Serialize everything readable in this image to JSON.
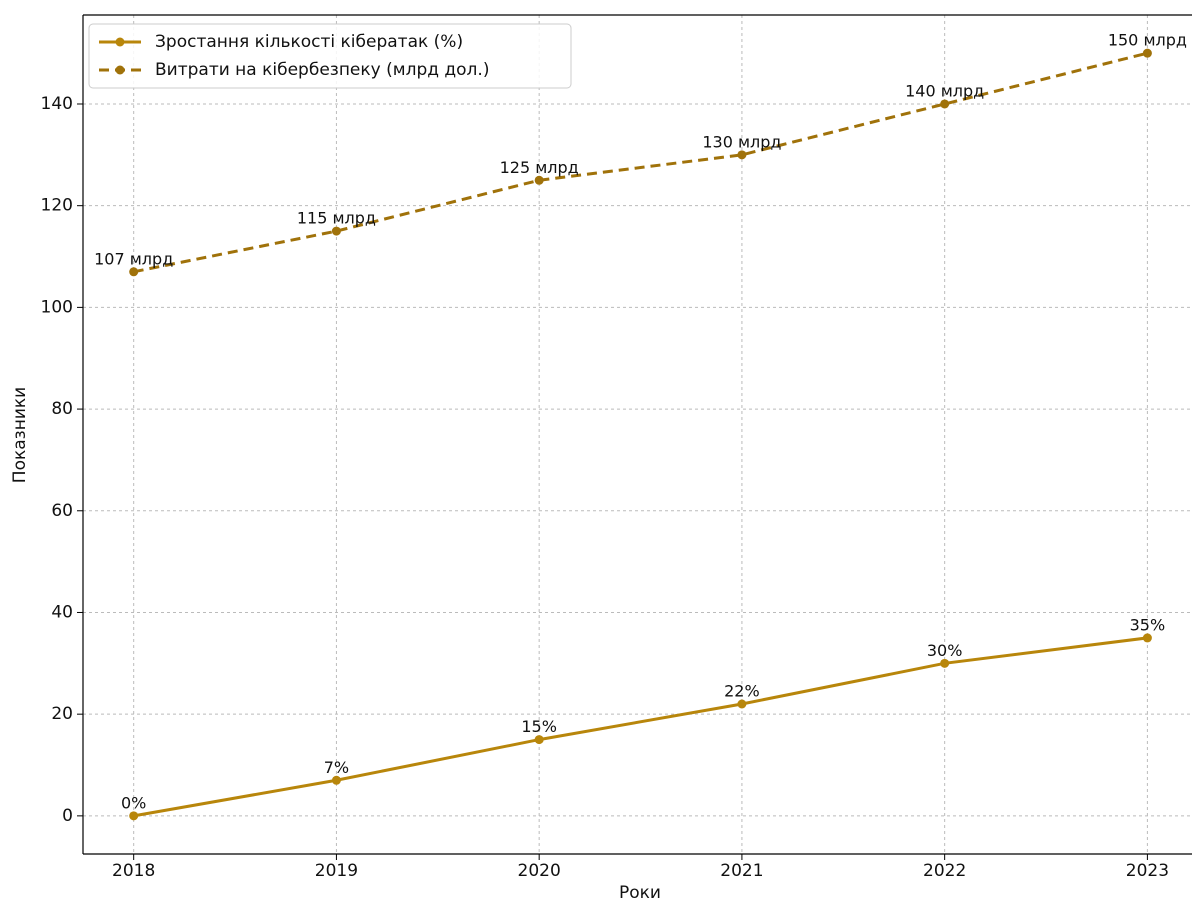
{
  "chart_data": {
    "type": "line",
    "x": [
      2018,
      2019,
      2020,
      2021,
      2022,
      2023
    ],
    "xlim": [
      2017.75,
      2023.22
    ],
    "xticks": [
      2018,
      2019,
      2020,
      2021,
      2022,
      2023
    ],
    "ylim": [
      -7.5,
      157.5
    ],
    "yticks": [
      0,
      20,
      40,
      60,
      80,
      100,
      120,
      140
    ],
    "x_label": "Роки",
    "y_label": "Показники",
    "grid": true,
    "legend": "upper left",
    "series": [
      {
        "name": "Зростання кількості кібератак (%)",
        "color": "#b8860b",
        "linestyle": "solid",
        "values": [
          0,
          7,
          15,
          22,
          30,
          35
        ],
        "value_labels": [
          "0%",
          "7%",
          "15%",
          "22%",
          "30%",
          "35%"
        ]
      },
      {
        "name": "Витрати на кібербезпеку (млрд дол.)",
        "color": "#a0720a",
        "linestyle": "dashed",
        "values": [
          107,
          115,
          125,
          130,
          140,
          150
        ],
        "value_labels": [
          "107 млрд",
          "115 млрд",
          "125 млрд",
          "130 млрд",
          "140 млрд",
          "150 млрд"
        ]
      }
    ]
  }
}
